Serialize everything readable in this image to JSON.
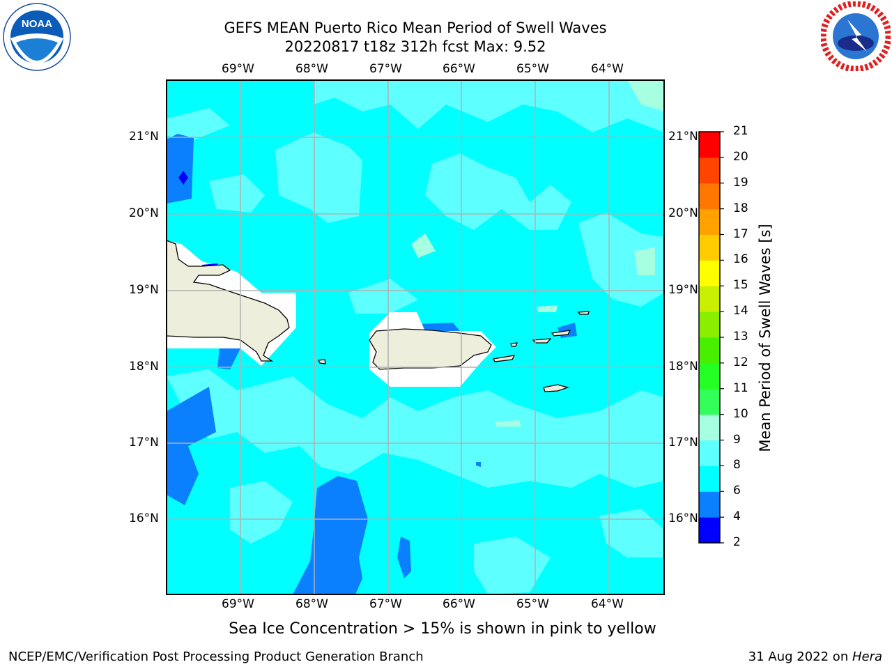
{
  "header": {
    "title_line1": "GEFS MEAN Puerto Rico Mean Period of Swell Waves",
    "title_line2": "20220817 t18z 312h fcst   Max: 9.52"
  },
  "map": {
    "lon_labels": [
      "69°W",
      "68°W",
      "67°W",
      "66°W",
      "65°W",
      "64°W"
    ],
    "lat_labels": [
      "21°N",
      "20°N",
      "19°N",
      "18°N",
      "17°N",
      "16°N"
    ],
    "ocean_colors": {
      "band_4_6": "#0b80ff",
      "band_6_8": "#00ffff",
      "band_8_9": "#5effff",
      "band_9_10": "#a6ffe0",
      "band_2_4": "#0000ff"
    },
    "land_color": "#eeeedd"
  },
  "colorbar": {
    "title": "Mean Period of Swell Waves [s]",
    "levels": [
      "2",
      "4",
      "6",
      "8",
      "9",
      "10",
      "11",
      "12",
      "13",
      "14",
      "15",
      "16",
      "17",
      "18",
      "19",
      "20",
      "21"
    ],
    "colors": [
      "#0000ff",
      "#0b80ff",
      "#00ffff",
      "#5effff",
      "#a6ffe0",
      "#32ff5a",
      "#24ff24",
      "#48f000",
      "#8aee00",
      "#c8f000",
      "#ffff00",
      "#ffcc00",
      "#ffa200",
      "#ff7700",
      "#ff4400",
      "#ff0000"
    ]
  },
  "logos": {
    "noaa_text": "NOAA",
    "noaa_ring_text": "NATIONAL OCEANIC AND ATMOSPHERIC ADMINISTRATION · U.S. DEPARTMENT OF COMMERCE",
    "nws_ring_text": "NATIONAL WEATHER SERVICE"
  },
  "subtitle": "Sea Ice Concentration > 15% is shown in pink to yellow",
  "footer": {
    "left": "NCEP/EMC/Verification Post Processing Product Generation Branch",
    "right_prefix": "31 Aug 2022 on ",
    "right_host": "Hera"
  }
}
